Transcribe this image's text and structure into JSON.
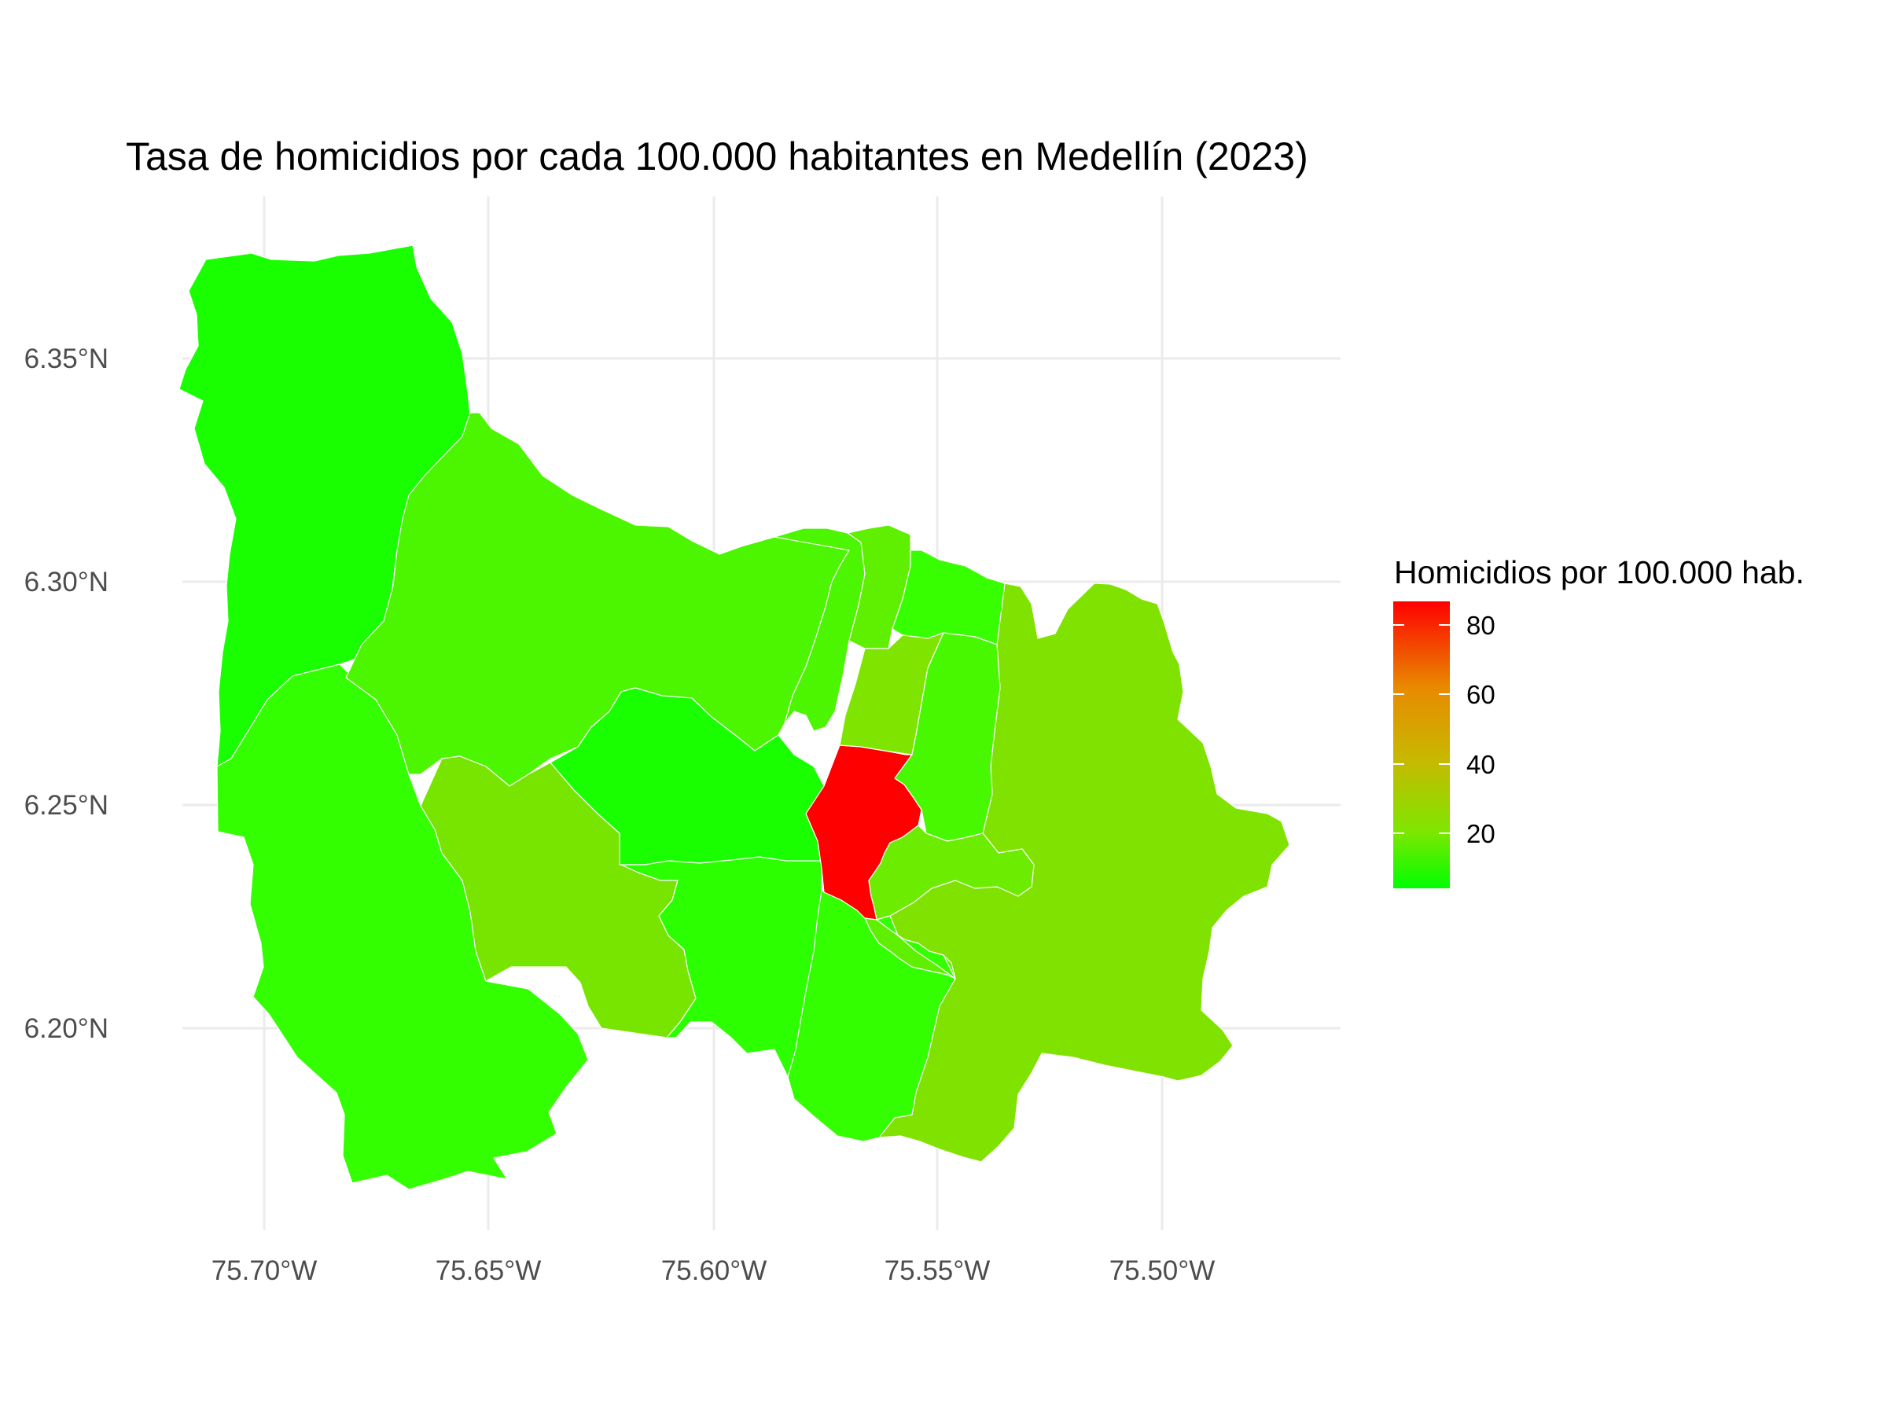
{
  "map": {
    "title": "Tasa de homicidios por cada 100.000 habitantes en Medellín (2023)",
    "lon_ticks": [
      "75.70°W",
      "75.65°W",
      "75.60°W",
      "75.55°W",
      "75.50°W"
    ],
    "lat_ticks": [
      "6.35°N",
      "6.30°N",
      "6.25°N",
      "6.20°N"
    ],
    "legend": {
      "title": "Homicidios por 100.000 hab.",
      "ticks": [
        "80",
        "60",
        "40",
        "20"
      ],
      "color_low": "#00ff00",
      "color_high": "#ff0000"
    },
    "regions": [
      {
        "name": "corregimiento-northwest",
        "color": "#1aff00",
        "value": 5
      },
      {
        "name": "corregimiento-southwest",
        "color": "#33ff00",
        "value": 8
      },
      {
        "name": "comuna-northwest-large",
        "color": "#4cf500",
        "value": 12
      },
      {
        "name": "comuna-west",
        "color": "#77e500",
        "value": 18
      },
      {
        "name": "corregimiento-east",
        "color": "#80e200",
        "value": 20
      },
      {
        "name": "comuna-south",
        "color": "#33ff00",
        "value": 8
      },
      {
        "name": "comuna-center-west",
        "color": "#1aff00",
        "value": 5
      },
      {
        "name": "comuna-center-west-inner",
        "color": "#2bff00",
        "value": 7
      },
      {
        "name": "comuna-candelaria",
        "color": "#ff0000",
        "value": 85
      },
      {
        "name": "comuna-north-1",
        "color": "#4cf500",
        "value": 12
      },
      {
        "name": "comuna-north-2",
        "color": "#5ef000",
        "value": 14
      },
      {
        "name": "comuna-north-3",
        "color": "#38ff00",
        "value": 9
      },
      {
        "name": "comuna-north-central",
        "color": "#7ee400",
        "value": 20
      },
      {
        "name": "comuna-east-central",
        "color": "#48f800",
        "value": 11
      },
      {
        "name": "comuna-southcenter-1",
        "color": "#5ef000",
        "value": 14
      },
      {
        "name": "comuna-southcenter-2",
        "color": "#6bec00",
        "value": 16
      },
      {
        "name": "comuna-southeast-strip",
        "color": "#33ff00",
        "value": 8
      }
    ]
  }
}
